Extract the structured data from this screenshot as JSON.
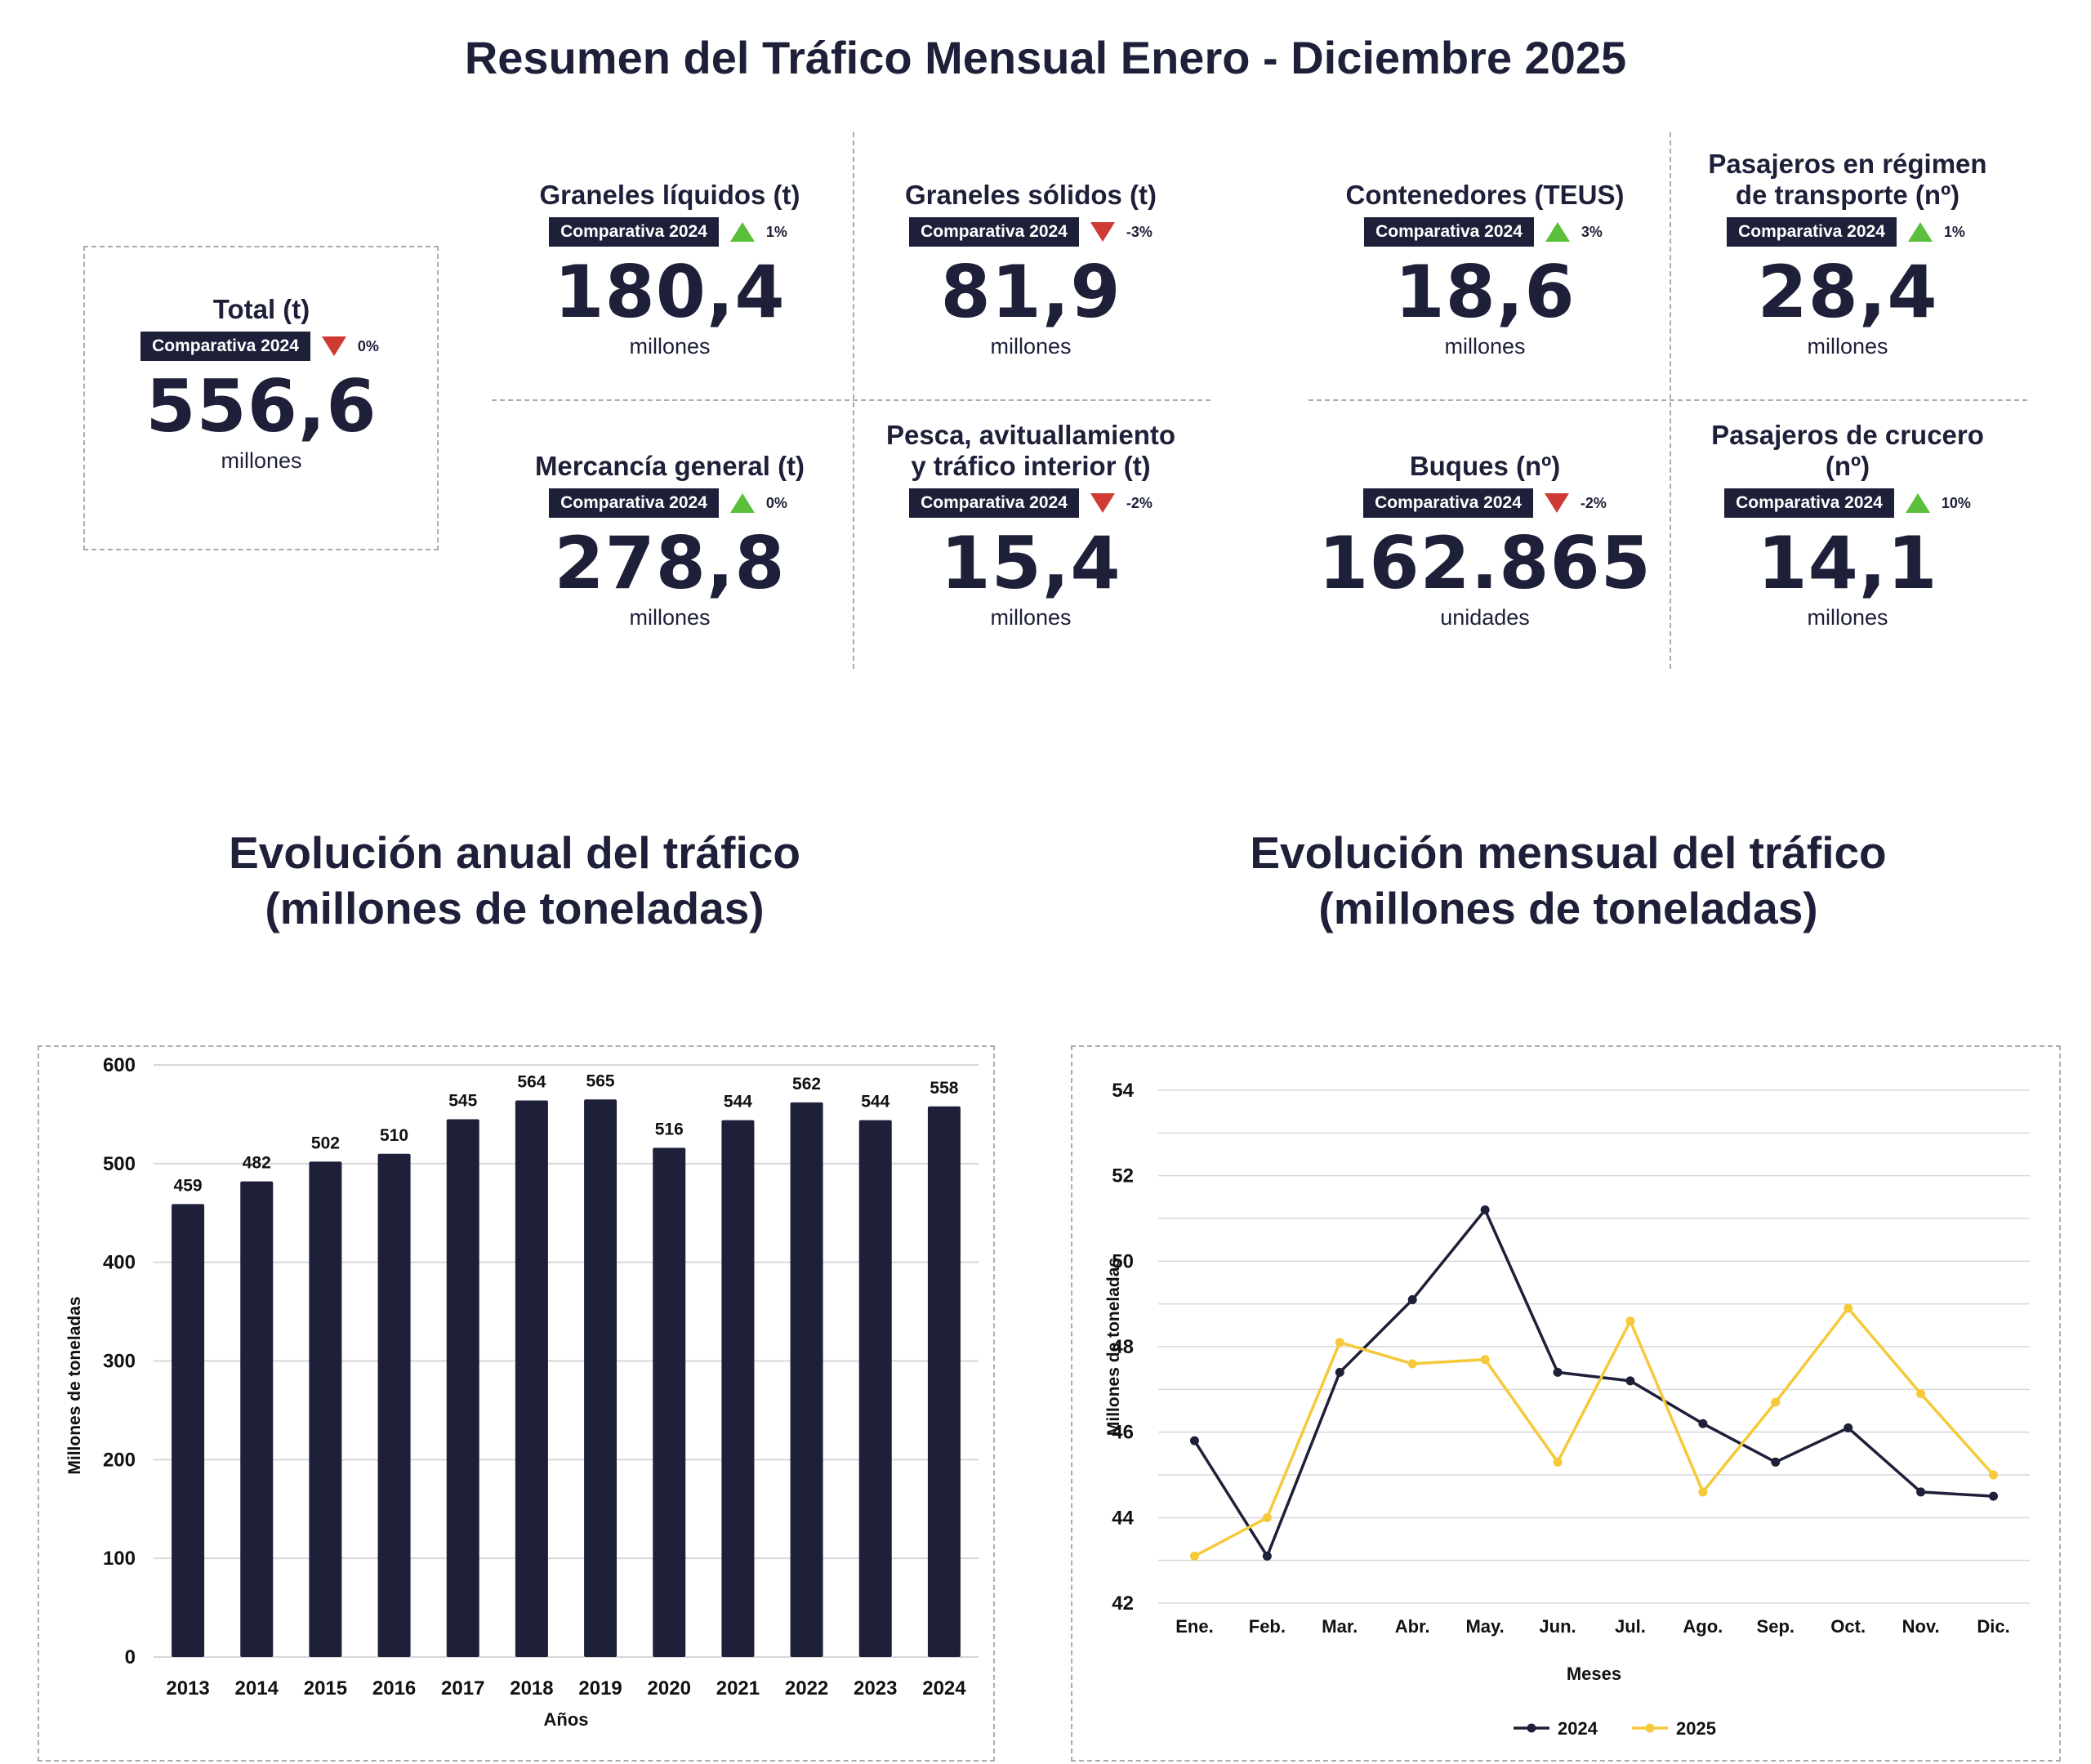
{
  "title": "Resumen del Tráfico Mensual Enero - Diciembre 2025",
  "kpis": [
    {
      "title_lines": [
        "Total (t)"
      ],
      "badge": "Comparativa 2024",
      "trend": "down",
      "pct": "0%",
      "value": "556,6",
      "unit": "millones"
    },
    {
      "title_lines": [
        "Graneles líquidos (t)"
      ],
      "badge": "Comparativa 2024",
      "trend": "up",
      "pct": "1%",
      "value": "180,4",
      "unit": "millones"
    },
    {
      "title_lines": [
        "Graneles sólidos (t)"
      ],
      "badge": "Comparativa 2024",
      "trend": "down",
      "pct": "-3%",
      "value": "81,9",
      "unit": "millones"
    },
    {
      "title_lines": [
        "Contenedores (TEUS)"
      ],
      "badge": "Comparativa 2024",
      "trend": "up",
      "pct": "3%",
      "value": "18,6",
      "unit": "millones"
    },
    {
      "title_lines": [
        "Pasajeros en régimen",
        "de transporte (nº)"
      ],
      "badge": "Comparativa 2024",
      "trend": "up",
      "pct": "1%",
      "value": "28,4",
      "unit": "millones"
    },
    {
      "title_lines": [
        "Mercancía general (t)"
      ],
      "badge": "Comparativa 2024",
      "trend": "up",
      "pct": "0%",
      "value": "278,8",
      "unit": "millones"
    },
    {
      "title_lines": [
        "Pesca, avituallamiento",
        "y tráfico interior (t)"
      ],
      "badge": "Comparativa 2024",
      "trend": "down",
      "pct": "-2%",
      "value": "15,4",
      "unit": "millones"
    },
    {
      "title_lines": [
        "Buques (nº)"
      ],
      "badge": "Comparativa 2024",
      "trend": "down",
      "pct": "-2%",
      "value": "162.865",
      "unit": "unidades"
    },
    {
      "title_lines": [
        "Pasajeros de crucero",
        "(nº)"
      ],
      "badge": "Comparativa 2024",
      "trend": "up",
      "pct": "10%",
      "value": "14,1",
      "unit": "millones"
    }
  ],
  "colors": {
    "navy": "#1e2039",
    "yellow": "#f5c93a",
    "up": "#5cbf3c",
    "down": "#cf3a35",
    "grid": "#d7d7da"
  },
  "chart_data": [
    {
      "type": "bar",
      "title": "Evolución anual del tráfico (millones de toneladas)",
      "title_lines": [
        "Evolución anual del tráfico",
        "(millones de toneladas)"
      ],
      "xlabel": "Años",
      "ylabel": "Millones de toneladas",
      "categories": [
        "2013",
        "2014",
        "2015",
        "2016",
        "2017",
        "2018",
        "2019",
        "2020",
        "2021",
        "2022",
        "2023",
        "2024"
      ],
      "values": [
        459,
        482,
        502,
        510,
        545,
        564,
        565,
        516,
        544,
        562,
        544,
        558
      ],
      "ylim": [
        0,
        600
      ],
      "yticks": [
        0,
        100,
        200,
        300,
        400,
        500,
        600
      ],
      "grid": true,
      "color": "#1e2039"
    },
    {
      "type": "line",
      "title": "Evolución mensual del tráfico (millones de toneladas)",
      "title_lines": [
        "Evolución mensual del tráfico",
        "(millones de toneladas)"
      ],
      "xlabel": "Meses",
      "ylabel": "Millones de toneladas",
      "categories": [
        "Ene.",
        "Feb.",
        "Mar.",
        "Abr.",
        "May.",
        "Jun.",
        "Jul.",
        "Ago.",
        "Sep.",
        "Oct.",
        "Nov.",
        "Dic."
      ],
      "series": [
        {
          "name": "2024",
          "color": "#1e2039",
          "values": [
            45.8,
            43.1,
            47.4,
            49.1,
            51.2,
            47.4,
            47.2,
            46.2,
            45.3,
            46.1,
            44.6,
            44.5
          ]
        },
        {
          "name": "2025",
          "color": "#f5c93a",
          "values": [
            43.1,
            44.0,
            48.1,
            47.6,
            47.7,
            45.3,
            48.6,
            44.6,
            46.7,
            48.9,
            46.9,
            45.0
          ]
        }
      ],
      "ylim": [
        42,
        54
      ],
      "yticks": [
        42,
        44,
        46,
        48,
        50,
        52,
        54
      ],
      "grid": true,
      "legend": "bottom"
    }
  ]
}
